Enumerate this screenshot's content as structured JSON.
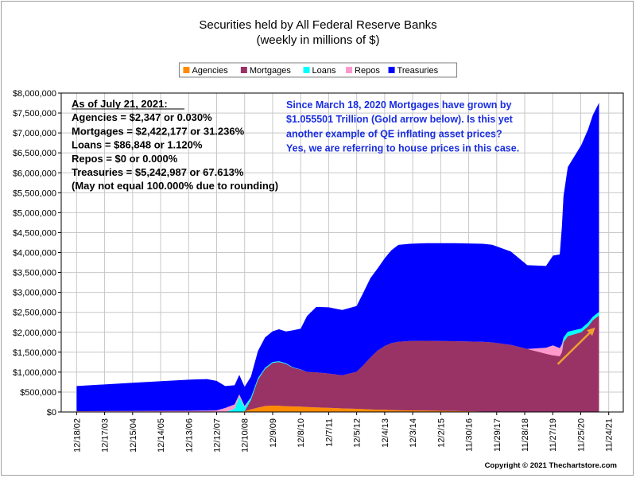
{
  "chart_data": {
    "type": "area",
    "stacked": true,
    "title": "Securities held by All Federal Reserve Banks",
    "subtitle": "(weekly in millions of $)",
    "xlabel": "",
    "ylabel": "",
    "ylim": [
      0,
      8000000
    ],
    "y_ticks": [
      0,
      500000,
      1000000,
      1500000,
      2000000,
      2500000,
      3000000,
      3500000,
      4000000,
      4500000,
      5000000,
      5500000,
      6000000,
      6500000,
      7000000,
      7500000,
      8000000
    ],
    "y_tick_labels": [
      "$0",
      "$500,000",
      "$1,000,000",
      "$1,500,000",
      "$2,000,000",
      "$2,500,000",
      "$3,000,000",
      "$3,500,000",
      "$4,000,000",
      "$4,500,000",
      "$5,000,000",
      "$5,500,000",
      "$6,000,000",
      "$6,500,000",
      "$7,000,000",
      "$7,500,000",
      "$8,000,000"
    ],
    "x_ticks": [
      "2002-12-18",
      "2003-12-17",
      "2004-12-15",
      "2005-12-14",
      "2006-12-13",
      "2007-12-12",
      "2008-12-10",
      "2009-12-09",
      "2010-12-08",
      "2011-12-07",
      "2012-12-05",
      "2013-12-04",
      "2014-12-03",
      "2015-12-02",
      "2016-11-30",
      "2017-11-29",
      "2018-11-28",
      "2019-11-27",
      "2020-11-25",
      "2021-11-24"
    ],
    "x_tick_labels": [
      "12/18/02",
      "12/17/03",
      "12/15/04",
      "12/14/05",
      "12/13/06",
      "12/12/07",
      "12/10/08",
      "12/9/09",
      "12/8/10",
      "12/7/11",
      "12/5/12",
      "12/4/13",
      "12/3/14",
      "12/2/15",
      "11/30/16",
      "11/29/17",
      "11/28/18",
      "11/27/19",
      "11/25/20",
      "11/24/21"
    ],
    "xlim": [
      "2002-06-01",
      "2022-06-01"
    ],
    "grid": true,
    "legend_position": "top-center",
    "x": [
      "2002-12-18",
      "2004-12-15",
      "2006-12-13",
      "2007-08-08",
      "2007-12-12",
      "2008-04-01",
      "2008-08-01",
      "2008-10-01",
      "2008-12-10",
      "2009-03-01",
      "2009-06-01",
      "2009-09-01",
      "2009-12-09",
      "2010-03-01",
      "2010-06-01",
      "2010-09-01",
      "2010-12-08",
      "2011-03-01",
      "2011-06-30",
      "2011-12-07",
      "2012-06-01",
      "2012-12-05",
      "2013-03-01",
      "2013-06-01",
      "2013-09-01",
      "2013-12-04",
      "2014-03-01",
      "2014-06-01",
      "2014-10-29",
      "2015-06-01",
      "2016-06-01",
      "2017-06-01",
      "2017-10-01",
      "2018-06-01",
      "2019-01-01",
      "2019-09-01",
      "2019-12-01",
      "2020-02-26",
      "2020-03-25",
      "2020-04-15",
      "2020-06-10",
      "2020-12-01",
      "2021-03-01",
      "2021-05-01",
      "2021-07-21"
    ],
    "series": [
      {
        "name": "Agencies",
        "color": "#ff8c00",
        "values": [
          0,
          0,
          0,
          0,
          0,
          0,
          0,
          0,
          20000,
          65000,
          110000,
          150000,
          160000,
          155000,
          145000,
          140000,
          135000,
          125000,
          115000,
          105000,
          90000,
          80000,
          72000,
          65000,
          58000,
          55000,
          48000,
          42000,
          40000,
          35000,
          25000,
          10000,
          5000,
          3000,
          2500,
          2500,
          2500,
          2400,
          2400,
          2350,
          2350,
          2350,
          2350,
          2350,
          2347
        ]
      },
      {
        "name": "Mortgages",
        "color": "#993366",
        "values": [
          0,
          0,
          0,
          0,
          0,
          0,
          0,
          0,
          0,
          240000,
          700000,
          930000,
          1070000,
          1100000,
          1060000,
          970000,
          930000,
          880000,
          880000,
          860000,
          830000,
          930000,
          1100000,
          1300000,
          1480000,
          1600000,
          1680000,
          1720000,
          1740000,
          1750000,
          1750000,
          1750000,
          1740000,
          1680000,
          1580000,
          1460000,
          1420000,
          1400000,
          1500000,
          1750000,
          1900000,
          2000000,
          2150000,
          2300000,
          2422177
        ]
      },
      {
        "name": "Loans",
        "color": "#00ffff",
        "values": [
          0,
          0,
          0,
          0,
          0,
          0,
          80000,
          380000,
          100000,
          60000,
          40000,
          30000,
          25000,
          20000,
          15000,
          10000,
          5000,
          0,
          0,
          0,
          0,
          0,
          0,
          0,
          0,
          0,
          0,
          0,
          0,
          0,
          0,
          0,
          0,
          0,
          0,
          0,
          0,
          0,
          0,
          110000,
          110000,
          90000,
          90000,
          88000,
          86848
        ]
      },
      {
        "name": "Repos",
        "color": "#ff99cc",
        "values": [
          20000,
          25000,
          30000,
          35000,
          40000,
          100000,
          110000,
          60000,
          30000,
          0,
          0,
          0,
          0,
          0,
          0,
          0,
          0,
          0,
          0,
          0,
          0,
          0,
          0,
          0,
          0,
          0,
          0,
          0,
          0,
          0,
          0,
          0,
          0,
          0,
          0,
          150000,
          250000,
          200000,
          200000,
          0,
          0,
          0,
          0,
          0,
          0
        ]
      },
      {
        "name": "Treasuries",
        "color": "#0000ff",
        "values": [
          630000,
          710000,
          780000,
          790000,
          740000,
          550000,
          480000,
          490000,
          480000,
          520000,
          680000,
          760000,
          770000,
          800000,
          800000,
          930000,
          1020000,
          1400000,
          1640000,
          1660000,
          1640000,
          1650000,
          1820000,
          1990000,
          2060000,
          2200000,
          2330000,
          2430000,
          2440000,
          2450000,
          2460000,
          2460000,
          2450000,
          2340000,
          2100000,
          2050000,
          2250000,
          2350000,
          2950000,
          3550000,
          4130000,
          4600000,
          4850000,
          5060000,
          5242987
        ]
      }
    ],
    "annotations": [
      {
        "id": "stats",
        "color": "#000000",
        "lines": [
          "As of July 21, 2021:",
          "Agencies = $2,347 or 0.030%",
          "Mortgages = $2,422,177 or 31.236%",
          "Loans = $86,848 or 1.120%",
          "Repos = $0 or 0.000%",
          "Treasuries = $5,242,987 or 67.613%",
          "(May not equal 100.000% due to rounding)"
        ]
      },
      {
        "id": "qe",
        "color": "#1a2ee0",
        "lines": [
          "Since March 18, 2020 Mortgages have grown by",
          "$1.055501 Trillion (Gold arrow below).  Is this yet",
          "another example of QE inflating asset prices?",
          "Yes, we are referring to house prices in this case."
        ]
      }
    ],
    "arrow": {
      "color": "#f0a030",
      "from": {
        "x": "2020-02-01",
        "y": 1200000
      },
      "to": {
        "x": "2021-06-01",
        "y": 2120000
      }
    }
  },
  "footer": {
    "copyright": "Copyright © 2021 Thechartstore.com"
  }
}
